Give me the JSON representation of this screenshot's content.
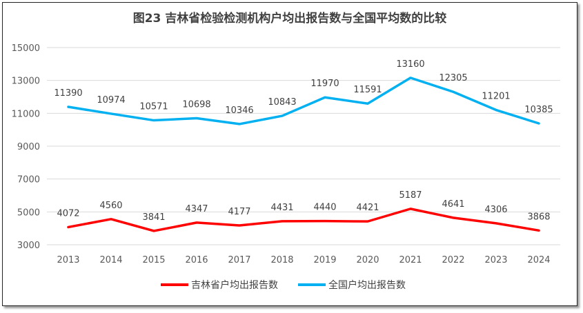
{
  "chart_data": {
    "type": "line",
    "title": "图23  吉林省检验检测机构户均出报告数与全国平均数的比较",
    "xlabel": "",
    "ylabel": "",
    "ylim": [
      3000,
      15000
    ],
    "yticks": [
      3000,
      5000,
      7000,
      9000,
      11000,
      13000,
      15000
    ],
    "grid": true,
    "legend": "bottom",
    "categories": [
      "2013",
      "2014",
      "2015",
      "2016",
      "2017",
      "2018",
      "2019",
      "2020",
      "2021",
      "2022",
      "2023",
      "2024"
    ],
    "series": [
      {
        "name": "吉林省户均出报告数",
        "color": "#ff0000",
        "values": [
          4072,
          4560,
          3841,
          4347,
          4177,
          4431,
          4440,
          4421,
          5187,
          4641,
          4306,
          3868
        ]
      },
      {
        "name": "全国户均出报告数",
        "color": "#00b0f0",
        "values": [
          11390,
          10974,
          10571,
          10698,
          10346,
          10843,
          11970,
          11591,
          13160,
          12305,
          11201,
          10385
        ]
      }
    ]
  }
}
